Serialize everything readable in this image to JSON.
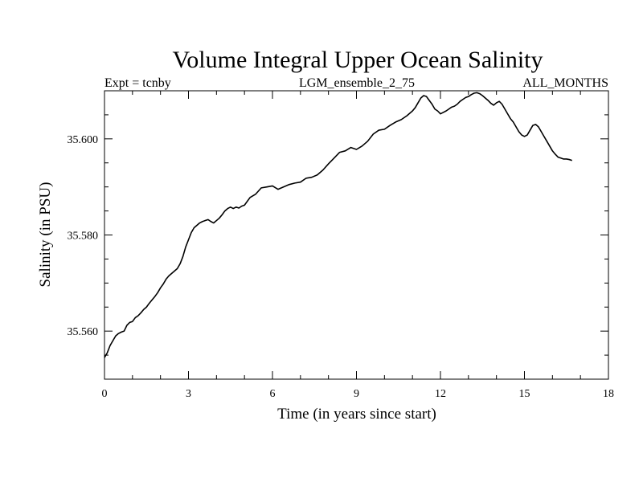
{
  "chart_data": {
    "type": "line",
    "title": "Volume Integral Upper Ocean Salinity",
    "subtitle_left": "Expt = tcnby",
    "subtitle_center": "LGM_ensemble_2_75",
    "subtitle_right": "ALL_MONTHS",
    "xlabel": "Time (in years since start)",
    "ylabel": "Salinity (in PSU)",
    "xlim": [
      0,
      18
    ],
    "ylim": [
      35.55,
      35.61
    ],
    "xticks": [
      0,
      3,
      6,
      9,
      12,
      15,
      18
    ],
    "xtick_labels": [
      "0",
      "3",
      "6",
      "9",
      "12",
      "15",
      "18"
    ],
    "yticks": [
      35.56,
      35.58,
      35.6
    ],
    "ytick_labels": [
      "35.560",
      "35.580",
      "35.600"
    ],
    "x_minor_step": 1,
    "y_minor_step": 0.005,
    "grid": false,
    "series": [
      {
        "name": "Salinity",
        "color": "#000000",
        "x": [
          0.0,
          0.1,
          0.2,
          0.3,
          0.4,
          0.5,
          0.6,
          0.7,
          0.8,
          0.9,
          1.0,
          1.1,
          1.2,
          1.3,
          1.4,
          1.5,
          1.6,
          1.7,
          1.8,
          1.9,
          2.0,
          2.1,
          2.2,
          2.3,
          2.4,
          2.5,
          2.6,
          2.7,
          2.8,
          2.9,
          3.0,
          3.1,
          3.2,
          3.3,
          3.4,
          3.5,
          3.6,
          3.7,
          3.8,
          3.9,
          4.0,
          4.1,
          4.2,
          4.3,
          4.4,
          4.5,
          4.6,
          4.7,
          4.8,
          4.9,
          5.0,
          5.2,
          5.4,
          5.6,
          5.8,
          6.0,
          6.2,
          6.4,
          6.6,
          6.8,
          7.0,
          7.2,
          7.4,
          7.6,
          7.8,
          8.0,
          8.2,
          8.4,
          8.6,
          8.8,
          9.0,
          9.2,
          9.4,
          9.6,
          9.8,
          10.0,
          10.2,
          10.4,
          10.6,
          10.8,
          11.0,
          11.1,
          11.2,
          11.3,
          11.4,
          11.5,
          11.6,
          11.7,
          11.8,
          11.9,
          12.0,
          12.1,
          12.2,
          12.3,
          12.4,
          12.5,
          12.6,
          12.7,
          12.8,
          12.9,
          13.0,
          13.1,
          13.2,
          13.3,
          13.4,
          13.5,
          13.6,
          13.7,
          13.8,
          13.9,
          14.0,
          14.1,
          14.2,
          14.3,
          14.4,
          14.5,
          14.6,
          14.7,
          14.8,
          14.9,
          15.0,
          15.1,
          15.2,
          15.3,
          15.4,
          15.5,
          15.6,
          15.7,
          15.8,
          15.9,
          16.0,
          16.1,
          16.2,
          16.3,
          16.4,
          16.5,
          16.6,
          16.7
        ],
        "values": [
          35.5545,
          35.5555,
          35.557,
          35.558,
          35.559,
          35.5595,
          35.5598,
          35.56,
          35.5612,
          35.5618,
          35.562,
          35.5628,
          35.5632,
          35.5638,
          35.5645,
          35.565,
          35.5658,
          35.5665,
          35.5672,
          35.568,
          35.569,
          35.5698,
          35.5708,
          35.5715,
          35.572,
          35.5725,
          35.573,
          35.574,
          35.5755,
          35.5775,
          35.579,
          35.5805,
          35.5815,
          35.582,
          35.5825,
          35.5828,
          35.583,
          35.5832,
          35.5828,
          35.5825,
          35.583,
          35.5835,
          35.5842,
          35.585,
          35.5855,
          35.5858,
          35.5855,
          35.5858,
          35.5856,
          35.586,
          35.5862,
          35.5878,
          35.5885,
          35.5898,
          35.59,
          35.5902,
          35.5895,
          35.59,
          35.5905,
          35.5908,
          35.591,
          35.5918,
          35.592,
          35.5925,
          35.5935,
          35.5948,
          35.596,
          35.5972,
          35.5975,
          35.5982,
          35.5978,
          35.5985,
          35.5995,
          35.601,
          35.6018,
          35.602,
          35.6028,
          35.6035,
          35.604,
          35.6048,
          35.6058,
          35.6065,
          35.6075,
          35.6085,
          35.609,
          35.6088,
          35.608,
          35.6072,
          35.6062,
          35.6058,
          35.6052,
          35.6055,
          35.6058,
          35.6062,
          35.6066,
          35.6068,
          35.6072,
          35.6078,
          35.6082,
          35.6086,
          35.6088,
          35.6092,
          35.6095,
          35.6096,
          35.6094,
          35.609,
          35.6085,
          35.608,
          35.6074,
          35.607,
          35.6075,
          35.6078,
          35.6072,
          35.6062,
          35.6052,
          35.6042,
          35.6035,
          35.6025,
          35.6015,
          35.6008,
          35.6005,
          35.6008,
          35.6018,
          35.6028,
          35.603,
          35.6025,
          35.6015,
          35.6005,
          35.5995,
          35.5985,
          35.5975,
          35.5968,
          35.5962,
          35.596,
          35.5958,
          35.5958,
          35.5957,
          35.5955
        ]
      }
    ]
  }
}
